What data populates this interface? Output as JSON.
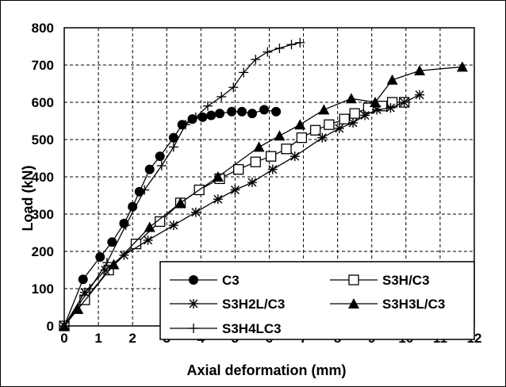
{
  "chart_data": {
    "type": "line",
    "title": "",
    "xlabel": "Axial deformation  (mm)",
    "ylabel": "Load (kN)",
    "xlim": [
      0,
      12
    ],
    "ylim": [
      0,
      800
    ],
    "xticks": [
      "0",
      "1",
      "2",
      "3",
      "4",
      "5",
      "6",
      "7",
      "8",
      "9",
      "10",
      "11",
      "12"
    ],
    "yticks": [
      "0",
      "100",
      "200",
      "300",
      "400",
      "500",
      "600",
      "700",
      "800"
    ],
    "grid": true,
    "grid_style": "dashed",
    "legend_position": "bottom-right",
    "series": [
      {
        "name": "C3",
        "marker": "filled-circle",
        "x": [
          0,
          0.55,
          1.05,
          1.4,
          1.75,
          2.0,
          2.2,
          2.5,
          2.8,
          3.2,
          3.45,
          3.75,
          4.05,
          4.3,
          4.55,
          4.9,
          5.2,
          5.5,
          5.85,
          6.2
        ],
        "y": [
          0,
          125,
          185,
          225,
          275,
          320,
          360,
          420,
          455,
          505,
          540,
          555,
          560,
          565,
          570,
          575,
          575,
          570,
          580,
          575
        ]
      },
      {
        "name": "S3H/C3",
        "marker": "open-square",
        "x": [
          0,
          0.6,
          1.3,
          2.1,
          2.8,
          3.4,
          3.95,
          4.55,
          5.1,
          5.6,
          6.05,
          6.5,
          6.95,
          7.35,
          7.75,
          8.2,
          8.5,
          8.9,
          9.3,
          9.6,
          9.95
        ],
        "y": [
          0,
          70,
          150,
          220,
          280,
          330,
          365,
          395,
          420,
          440,
          455,
          475,
          505,
          525,
          540,
          555,
          570,
          585,
          590,
          600,
          600
        ]
      },
      {
        "name": "S3H2L/C3",
        "marker": "asterisk",
        "x": [
          0,
          0.6,
          1.2,
          1.75,
          2.45,
          3.2,
          3.85,
          4.5,
          5.0,
          5.5,
          6.1,
          6.75,
          7.55,
          8.05,
          8.45,
          8.8,
          9.15,
          9.55,
          9.95,
          10.4
        ],
        "y": [
          0,
          90,
          150,
          190,
          230,
          270,
          305,
          340,
          365,
          385,
          420,
          455,
          505,
          530,
          545,
          565,
          580,
          585,
          600,
          620
        ]
      },
      {
        "name": "S3H3L/C3",
        "marker": "filled-triangle",
        "x": [
          0,
          0.4,
          1.45,
          2.5,
          3.4,
          4.5,
          5.7,
          6.3,
          6.9,
          7.6,
          8.4,
          9.1,
          9.6,
          10.4,
          11.65
        ],
        "y": [
          0,
          45,
          165,
          265,
          330,
          400,
          480,
          510,
          540,
          580,
          610,
          600,
          660,
          685,
          695
        ]
      },
      {
        "name": "S3H4LC3",
        "marker": "plus",
        "x": [
          0,
          0.75,
          1.25,
          1.8,
          2.35,
          2.85,
          3.2,
          3.55,
          3.85,
          4.2,
          4.6,
          4.95,
          5.25,
          5.6,
          5.95,
          6.3,
          6.65,
          6.9
        ],
        "y": [
          0,
          100,
          170,
          270,
          365,
          430,
          480,
          540,
          560,
          590,
          615,
          640,
          680,
          715,
          735,
          745,
          755,
          760
        ]
      }
    ]
  }
}
